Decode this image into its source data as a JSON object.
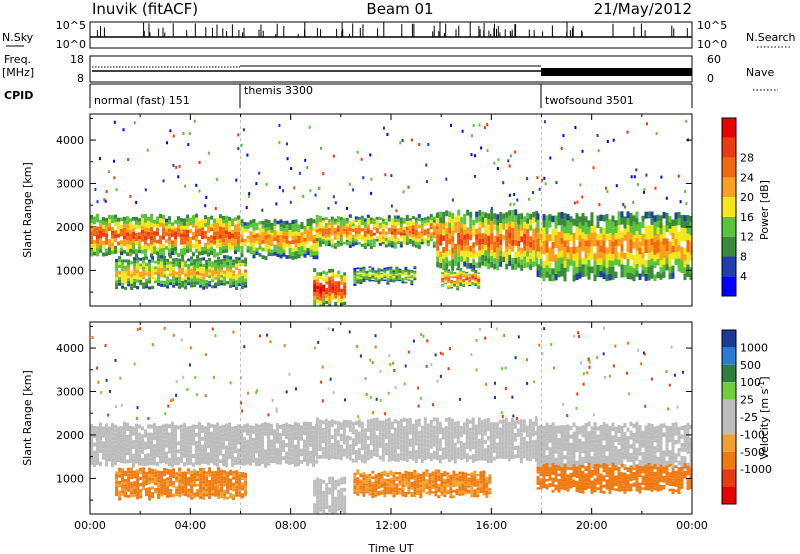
{
  "header": {
    "station": "Inuvik (fitACF)",
    "beam": "Beam 01",
    "date": "21/May/2012"
  },
  "panels": {
    "nsky_label": "N.Sky",
    "nsearch_label": "N.Search",
    "nsky_ticks": [
      "10^5",
      "10^0"
    ],
    "nsearch_ticks": [
      "10^5",
      "10^0"
    ],
    "freq_label": "Freq.",
    "freq_unit": "[MHz]",
    "freq_ticks": [
      "18",
      "8"
    ],
    "nave_label": "Nave",
    "nave_ticks": [
      "60",
      "0"
    ],
    "cpid_label": "CPID",
    "cpid_segments": [
      "normal (fast) 151",
      "themis 3300",
      "twofsound 3501"
    ]
  },
  "colors": {
    "power": [
      "#0000ff",
      "#1f3fb0",
      "#3a8a3a",
      "#5cc43c",
      "#f4e61c",
      "#f8a020",
      "#f26a10",
      "#ee3a10",
      "#e80000"
    ],
    "velocity": [
      "#1a3a9a",
      "#2a7ad8",
      "#2e7f3c",
      "#6fd03a",
      "#bdbdbd",
      "#bdbdbd",
      "#f0a030",
      "#f07a10",
      "#e83a10",
      "#e80000"
    ],
    "ground_scatter": "#bdbdbd"
  },
  "chart_data": [
    {
      "type": "heatmap",
      "parameter": "power",
      "xlabel": "",
      "ylabel": "Slant Range [km]",
      "xlim": [
        0,
        24
      ],
      "ylim": [
        180,
        4600
      ],
      "y_ticks": [
        1000,
        2000,
        3000,
        4000
      ],
      "colorbar_label": "Power [dB]",
      "colorbar_range": [
        0,
        32
      ],
      "colorbar_ticks": [
        "4",
        "8",
        "12",
        "16",
        "20",
        "24",
        "28"
      ],
      "bands": [
        {
          "t_start": 0.0,
          "t_end": 5.9,
          "range_low": 1350,
          "range_high": 2250,
          "power_core": 26
        },
        {
          "t_start": 6.0,
          "t_end": 9.0,
          "range_low": 1300,
          "range_high": 2150,
          "power_core": 22
        },
        {
          "t_start": 9.0,
          "t_end": 13.8,
          "range_low": 1550,
          "range_high": 2250,
          "power_core": 24
        },
        {
          "t_start": 13.8,
          "t_end": 17.8,
          "range_low": 1050,
          "range_high": 2350,
          "power_core": 25
        },
        {
          "t_start": 17.8,
          "t_end": 24.0,
          "range_low": 800,
          "range_high": 2300,
          "power_core": 22
        },
        {
          "t_start": 1.0,
          "t_end": 6.2,
          "range_low": 600,
          "range_high": 1300,
          "power_core": 20
        },
        {
          "t_start": 8.9,
          "t_end": 10.2,
          "range_low": 180,
          "range_high": 1000,
          "power_core": 30
        },
        {
          "t_start": 10.5,
          "t_end": 13.0,
          "range_low": 700,
          "range_high": 1050,
          "power_core": 16
        },
        {
          "t_start": 14.0,
          "t_end": 15.5,
          "range_low": 600,
          "range_high": 1000,
          "power_core": 26
        }
      ]
    },
    {
      "type": "heatmap",
      "parameter": "velocity",
      "xlabel": "Time UT",
      "ylabel": "Slant Range [km]",
      "xlim": [
        0,
        24
      ],
      "ylim": [
        180,
        4600
      ],
      "x_ticks": [
        "00:00",
        "04:00",
        "08:00",
        "12:00",
        "16:00",
        "20:00",
        "00:00"
      ],
      "y_ticks": [
        1000,
        2000,
        3000,
        4000
      ],
      "colorbar_label": "Velocity [m s^-1]",
      "colorbar_ticks": [
        "1000",
        "500",
        "100",
        "25",
        "-25",
        "-100",
        "-500",
        "-1000"
      ],
      "bands": [
        {
          "t_start": 0.0,
          "t_end": 9.0,
          "range_low": 1300,
          "range_high": 2250,
          "kind": "ground"
        },
        {
          "t_start": 9.0,
          "t_end": 17.8,
          "range_low": 1400,
          "range_high": 2350,
          "kind": "ground"
        },
        {
          "t_start": 17.8,
          "t_end": 24.0,
          "range_low": 1250,
          "range_high": 2250,
          "kind": "ground"
        },
        {
          "t_start": 1.0,
          "t_end": 6.2,
          "range_low": 550,
          "range_high": 1200,
          "kind": "ionospheric",
          "velocity": -200
        },
        {
          "t_start": 8.9,
          "t_end": 10.2,
          "range_low": 180,
          "range_high": 1000,
          "kind": "ground"
        },
        {
          "t_start": 10.5,
          "t_end": 16.0,
          "range_low": 600,
          "range_high": 1150,
          "kind": "ionospheric",
          "velocity": -150
        },
        {
          "t_start": 17.8,
          "t_end": 24.0,
          "range_low": 700,
          "range_high": 1300,
          "kind": "ionospheric",
          "velocity": -300
        }
      ]
    }
  ]
}
